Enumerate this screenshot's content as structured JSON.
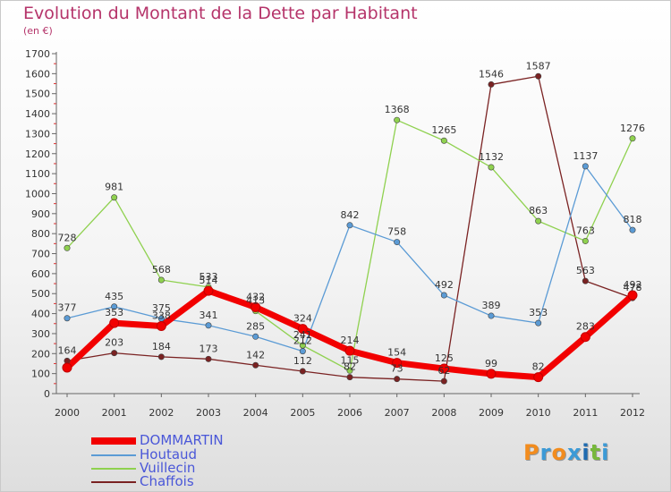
{
  "title": "Evolution du Montant de la Dette par Habitant",
  "subtitle": "(en €)",
  "logo": {
    "text": "Proxiti",
    "colors": [
      "#f28c1e",
      "#3c9ad6",
      "#f28c1e",
      "#3c9ad6",
      "#1f6bb0",
      "#77b83b",
      "#3c9ad6"
    ]
  },
  "chart_data": {
    "type": "line",
    "x": [
      "2000",
      "2001",
      "2002",
      "2003",
      "2004",
      "2005",
      "2006",
      "2007",
      "2008",
      "2009",
      "2010",
      "2011",
      "2012"
    ],
    "ylim": [
      0,
      1700
    ],
    "yticks": [
      0,
      100,
      200,
      300,
      400,
      500,
      600,
      700,
      800,
      900,
      1000,
      1100,
      1200,
      1300,
      1400,
      1500,
      1600,
      1700
    ],
    "grid": false,
    "legend": "bottom-left",
    "series": [
      {
        "name": "Chaffois",
        "color": "#7a2222",
        "width": 1.3,
        "values": [
          164,
          203,
          184,
          173,
          142,
          112,
          82,
          73,
          62,
          1546,
          1587,
          563,
          478
        ],
        "labels": [
          "164",
          "203",
          "184",
          "173",
          "142",
          "112",
          "82",
          "73",
          "62",
          "1546",
          "1587",
          "563",
          "478"
        ]
      },
      {
        "name": "Vuillecin",
        "color": "#8fd14f",
        "width": 1.3,
        "values": [
          728,
          981,
          568,
          533,
          413,
          241,
          115,
          1368,
          1265,
          1132,
          863,
          763,
          1276
        ],
        "labels": [
          "728",
          "981",
          "568",
          "533",
          "413",
          "241",
          "115",
          "1368",
          "1265",
          "1132",
          "863",
          "763",
          "1276"
        ]
      },
      {
        "name": "Houtaud",
        "color": "#5b9bd5",
        "width": 1.3,
        "values": [
          377,
          435,
          375,
          341,
          285,
          212,
          842,
          758,
          492,
          389,
          353,
          1137,
          818
        ],
        "labels": [
          "377",
          "435",
          "375",
          "341",
          "285",
          "212",
          "842",
          "758",
          "492",
          "389",
          "353",
          "1137",
          "818"
        ]
      },
      {
        "name": "DOMMARTIN",
        "color": "#f20000",
        "width": 7,
        "values": [
          130,
          353,
          338,
          514,
          432,
          324,
          214,
          154,
          125,
          99,
          82,
          283,
          492
        ],
        "labels": [
          "",
          "353",
          "338",
          "514",
          "432",
          "324",
          "214",
          "154",
          "125",
          "99",
          "82",
          "283",
          "492"
        ]
      }
    ]
  }
}
